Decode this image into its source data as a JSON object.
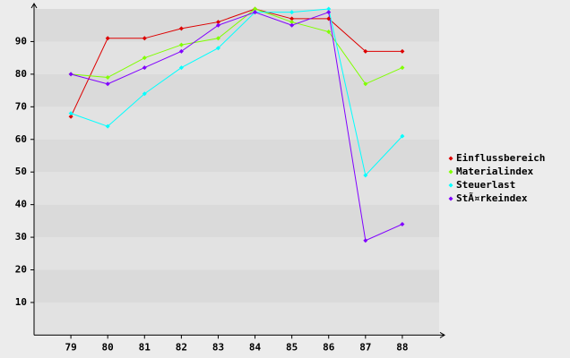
{
  "chart_data": {
    "type": "line",
    "categories": [
      "79",
      "80",
      "81",
      "82",
      "83",
      "84",
      "85",
      "86",
      "87",
      "88"
    ],
    "series": [
      {
        "name": "Einflussbereich",
        "color": "#dd0000",
        "values": [
          67,
          91,
          91,
          94,
          96,
          100,
          97,
          97,
          87,
          87
        ]
      },
      {
        "name": "Materialindex",
        "color": "#80ff00",
        "values": [
          80,
          79,
          85,
          89,
          91,
          100,
          96,
          93,
          77,
          82
        ]
      },
      {
        "name": "Steuerlast",
        "color": "#00ffff",
        "values": [
          68,
          64,
          74,
          82,
          88,
          99,
          99,
          100,
          49,
          61
        ]
      },
      {
        "name": "StÃ¤rkeindex",
        "color": "#8000ff",
        "values": [
          80,
          77,
          82,
          87,
          95,
          99,
          95,
          99,
          29,
          34
        ]
      }
    ],
    "ylim": [
      0,
      100
    ],
    "yticks": [
      10,
      20,
      30,
      40,
      50,
      60,
      70,
      80,
      90
    ],
    "grid": true,
    "legend": "right"
  }
}
